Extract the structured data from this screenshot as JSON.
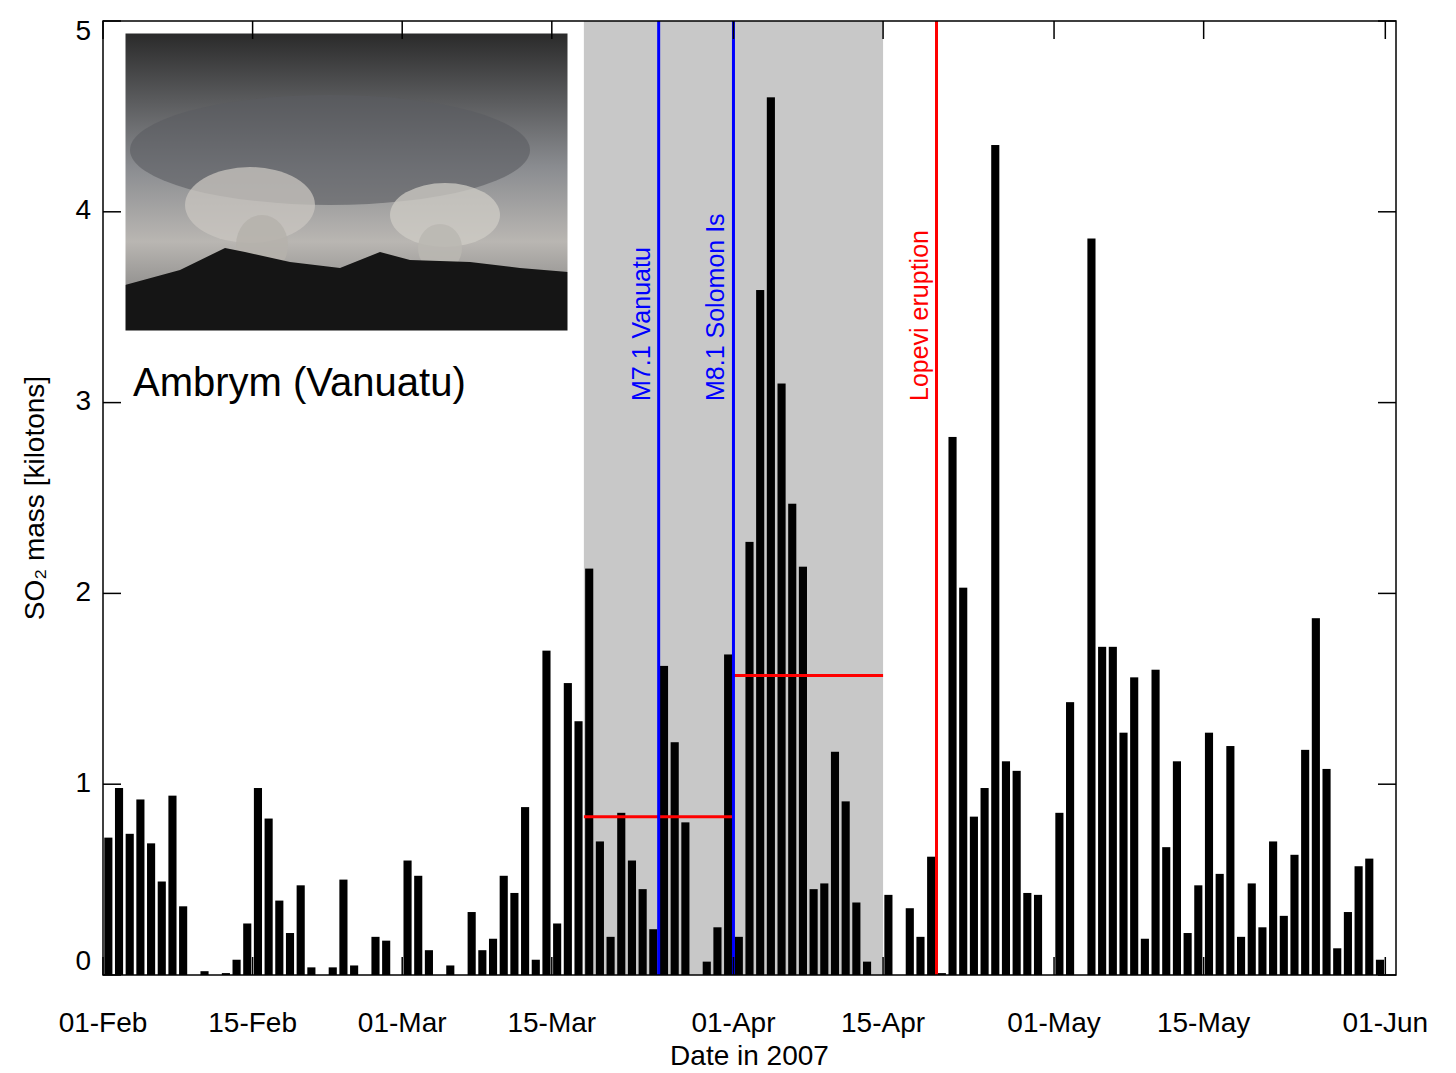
{
  "chart_data": {
    "type": "bar",
    "color": "#000000",
    "xlabel": "Date in 2007",
    "ylabel": "SO₂ mass [kilotons]",
    "inset_label": "Ambrym (Vanuatu)",
    "x": [
      0,
      1,
      2,
      3,
      4,
      5,
      6,
      7,
      8,
      9,
      10,
      11,
      12,
      13,
      14,
      15,
      16,
      17,
      18,
      19,
      20,
      21,
      22,
      23,
      24,
      25,
      26,
      27,
      28,
      29,
      30,
      31,
      32,
      33,
      34,
      35,
      36,
      37,
      38,
      39,
      40,
      41,
      42,
      43,
      44,
      45,
      46,
      47,
      48,
      49,
      50,
      51,
      52,
      53,
      54,
      55,
      56,
      57,
      58,
      59,
      60,
      61,
      62,
      63,
      64,
      65,
      66,
      67,
      68,
      69,
      70,
      71,
      72,
      73,
      74,
      75,
      76,
      77,
      78,
      79,
      80,
      81,
      82,
      83,
      84,
      85,
      86,
      87,
      88,
      89,
      90,
      91,
      92,
      93,
      94,
      95,
      96,
      97,
      98,
      99,
      100,
      101,
      102,
      103,
      104,
      105,
      106,
      107,
      108,
      109,
      110,
      111,
      112,
      113,
      114,
      115,
      116,
      117,
      118,
      119
    ],
    "values": [
      0.72,
      0.98,
      0.74,
      0.92,
      0.69,
      0.49,
      0.94,
      0.36,
      0,
      0.02,
      0,
      0.01,
      0.08,
      0.27,
      0.98,
      0.82,
      0.39,
      0.22,
      0.47,
      0.04,
      0,
      0.04,
      0.5,
      0.05,
      0,
      0.2,
      0.18,
      0,
      0.6,
      0.52,
      0.13,
      0,
      0.05,
      0,
      0.33,
      0.13,
      0.19,
      0.52,
      0.43,
      0.88,
      0.08,
      1.7,
      0.27,
      1.53,
      1.33,
      2.13,
      0.7,
      0.2,
      0.85,
      0.6,
      0.45,
      0.24,
      1.62,
      1.22,
      0.8,
      0,
      0.07,
      0.25,
      1.68,
      0.2,
      2.27,
      3.59,
      4.6,
      3.1,
      2.47,
      2.14,
      0.45,
      0.48,
      1.17,
      0.91,
      0.38,
      0.07,
      0,
      0.42,
      0,
      0.35,
      0.2,
      0.62,
      0.01,
      2.82,
      2.03,
      0.83,
      0.98,
      4.35,
      1.12,
      1.07,
      0.43,
      0.42,
      0,
      0.85,
      1.43,
      0,
      3.86,
      1.72,
      1.72,
      1.27,
      1.56,
      0.19,
      1.6,
      0.67,
      1.12,
      0.22,
      0.47,
      1.27,
      0.53,
      1.2,
      0.2,
      0.48,
      0.25,
      0.7,
      0.31,
      0.63,
      1.18,
      1.87,
      1.08,
      0.14,
      0.33,
      0.57,
      0.61,
      0.08
    ],
    "xlim": [
      0,
      121
    ],
    "xticks": [
      {
        "value": 0,
        "label": "01-Feb"
      },
      {
        "value": 14,
        "label": "15-Feb"
      },
      {
        "value": 28,
        "label": "01-Mar"
      },
      {
        "value": 42,
        "label": "15-Mar"
      },
      {
        "value": 59,
        "label": "01-Apr"
      },
      {
        "value": 73,
        "label": "15-Apr"
      },
      {
        "value": 89,
        "label": "01-May"
      },
      {
        "value": 103,
        "label": "15-May"
      },
      {
        "value": 120,
        "label": "01-Jun"
      }
    ],
    "ylim": [
      0,
      5
    ],
    "yticks": [
      0,
      1,
      2,
      3,
      4,
      5
    ],
    "grid": false,
    "shaded_range": [
      45,
      73
    ],
    "annotations": [
      {
        "text": "M7.1 Vanuatu",
        "x": 52,
        "color": "#0000ff"
      },
      {
        "text": "M8.1 Solomon Is",
        "x": 59,
        "color": "#0000ff"
      },
      {
        "text": "Lopevi eruption",
        "x": 78,
        "color": "#ff0000"
      }
    ],
    "mean_lines": [
      {
        "x": [
          45,
          59
        ],
        "value": 0.83,
        "color": "#ff0000"
      },
      {
        "x": [
          59,
          73
        ],
        "value": 1.57,
        "color": "#ff0000"
      }
    ]
  }
}
